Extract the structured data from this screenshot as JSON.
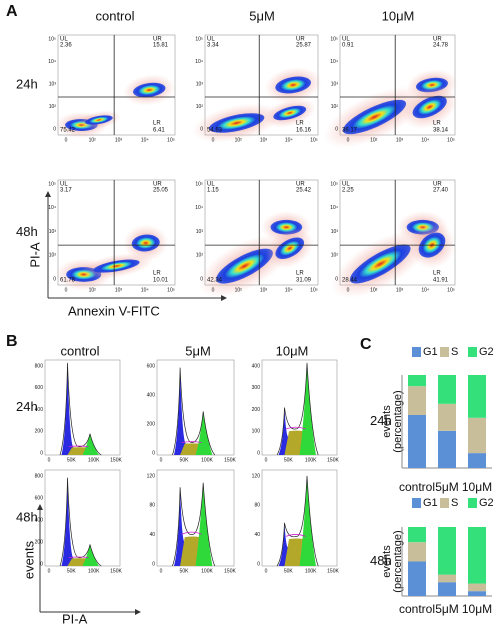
{
  "panel_a": {
    "label": "A",
    "columns": [
      "control",
      "5μM",
      "10μM"
    ],
    "rows": [
      "24h",
      "48h"
    ],
    "x_label": "Annexin V-FITC",
    "y_label": "PI-A",
    "quadrant_names": [
      "UL",
      "UR",
      "LR"
    ],
    "x_ticks": [
      "0",
      "10²",
      "10³",
      "10⁴",
      "10⁵"
    ],
    "y_ticks": [
      "0",
      "10²",
      "10³",
      "10⁴",
      "10⁵"
    ],
    "plots": [
      [
        {
          "UL": "2.36",
          "UR": "15.81",
          "LR": "6.41",
          "LL": "75.42"
        },
        {
          "UL": "3.34",
          "UR": "25.87",
          "LR": "16.16",
          "LL": "54.63"
        },
        {
          "UL": "0.91",
          "UR": "24.78",
          "LR": "38.14",
          "LL": "36.17"
        }
      ],
      [
        {
          "UL": "3.17",
          "UR": "25.05",
          "LR": "10.01",
          "LL": "61.78"
        },
        {
          "UL": "1.15",
          "UR": "25.42",
          "LR": "31.09",
          "LL": "42.34"
        },
        {
          "UL": "2.25",
          "UR": "27.40",
          "LR": "41.91",
          "LL": "28.44"
        }
      ]
    ]
  },
  "panel_b": {
    "label": "B",
    "columns": [
      "control",
      "5μM",
      "10μM"
    ],
    "rows": [
      "24h",
      "48h"
    ],
    "x_label": "PI-A",
    "y_label": "events",
    "x_ticks": [
      "0",
      "50K",
      "100K",
      "150K"
    ],
    "y_ticks": [
      [
        [
          "0",
          "200",
          "400",
          "600",
          "800"
        ],
        [
          "0",
          "200",
          "400",
          "600"
        ],
        [
          "0",
          "100",
          "200",
          "300",
          "400"
        ]
      ],
      [
        [
          "0",
          "200",
          "400",
          "600",
          "800"
        ],
        [
          "0",
          "40",
          "80",
          "120"
        ],
        [
          "0",
          "40",
          "80",
          "120"
        ]
      ]
    ]
  },
  "panel_c": {
    "label": "C"
  },
  "chart_data": [
    {
      "type": "stacked_bar",
      "title": "24h",
      "y_label": [
        "events",
        "(percentage)"
      ],
      "categories": [
        "control",
        "5μM",
        "10μM"
      ],
      "series": [
        {
          "name": "G1",
          "color": "#5b8fd6",
          "values": [
            57,
            40,
            16
          ]
        },
        {
          "name": "S",
          "color": "#c8bf9a",
          "values": [
            31,
            29,
            38
          ]
        },
        {
          "name": "G2",
          "color": "#33e07a",
          "values": [
            12,
            31,
            46
          ]
        }
      ],
      "ylim": [
        0,
        100
      ]
    },
    {
      "type": "stacked_bar",
      "title": "48h",
      "y_label": [
        "events",
        "(percentage)"
      ],
      "categories": [
        "control",
        "5μM",
        "10μM"
      ],
      "series": [
        {
          "name": "G1",
          "color": "#5b8fd6",
          "values": [
            50,
            20,
            7
          ]
        },
        {
          "name": "S",
          "color": "#c8bf9a",
          "values": [
            28,
            11,
            11
          ]
        },
        {
          "name": "G2",
          "color": "#33e07a",
          "values": [
            22,
            69,
            82
          ]
        }
      ],
      "ylim": [
        0,
        100
      ]
    }
  ]
}
